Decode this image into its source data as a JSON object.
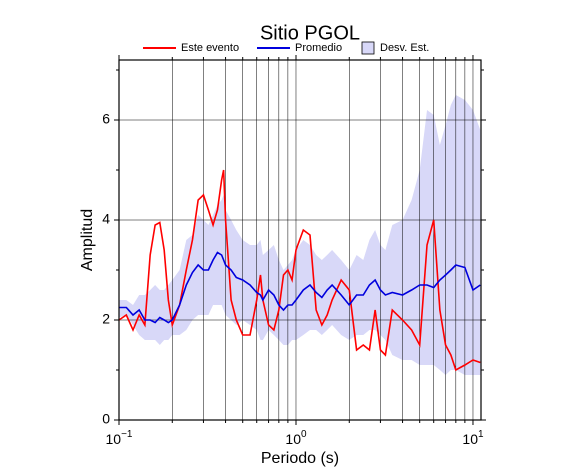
{
  "chart_data": {
    "type": "line",
    "title": "Sitio PGOL",
    "xlabel": "Periodo (s)",
    "ylabel": "Amplitud",
    "xscale": "log",
    "xlim": [
      0.1,
      11.1
    ],
    "ylim": [
      0,
      7.2
    ],
    "xticks": [
      {
        "value": 0.1,
        "label": "10",
        "exponent": "−1"
      },
      {
        "value": 1,
        "label": "10",
        "exponent": "0"
      },
      {
        "value": 10,
        "label": "10",
        "exponent": "1"
      }
    ],
    "xgrid_minor": [
      0.2,
      0.3,
      0.4,
      0.5,
      0.6,
      0.7,
      0.8,
      0.9,
      2,
      3,
      4,
      5,
      6,
      7,
      8,
      9
    ],
    "yticks": [
      0,
      2,
      4,
      6
    ],
    "yticks_minor": [
      1,
      3,
      5,
      7
    ],
    "grid": true,
    "legend": "top",
    "x": [
      0.1,
      0.11,
      0.12,
      0.13,
      0.14,
      0.15,
      0.16,
      0.17,
      0.18,
      0.19,
      0.2,
      0.22,
      0.24,
      0.26,
      0.28,
      0.3,
      0.32,
      0.34,
      0.36,
      0.38,
      0.39,
      0.4,
      0.43,
      0.46,
      0.5,
      0.55,
      0.6,
      0.63,
      0.65,
      0.7,
      0.75,
      0.8,
      0.85,
      0.9,
      0.95,
      1.0,
      1.1,
      1.2,
      1.3,
      1.4,
      1.5,
      1.6,
      1.8,
      2.0,
      2.2,
      2.4,
      2.6,
      2.8,
      3.0,
      3.2,
      3.5,
      4.0,
      4.5,
      5.0,
      5.5,
      6.0,
      6.5,
      7.0,
      7.5,
      8.0,
      9.0,
      10,
      11
    ],
    "series": [
      {
        "name": "Este evento",
        "color": "#ff0000",
        "values": [
          2.0,
          2.1,
          1.8,
          2.1,
          1.9,
          3.3,
          3.9,
          3.95,
          3.4,
          2.4,
          1.9,
          2.3,
          3.0,
          3.6,
          4.4,
          4.5,
          4.2,
          3.9,
          4.2,
          4.8,
          5.0,
          4.0,
          2.4,
          2.0,
          1.7,
          1.7,
          2.4,
          2.9,
          2.4,
          1.9,
          1.8,
          2.2,
          2.9,
          3.0,
          2.8,
          3.4,
          3.8,
          3.7,
          2.2,
          1.9,
          2.1,
          2.4,
          2.8,
          2.6,
          1.4,
          1.5,
          1.4,
          2.2,
          1.4,
          1.3,
          2.2,
          2.0,
          1.8,
          1.5,
          3.5,
          4.0,
          2.2,
          1.5,
          1.3,
          1.0,
          1.1,
          1.2,
          1.15
        ]
      },
      {
        "name": "Promedio",
        "color": "#0000dd",
        "values": [
          2.25,
          2.25,
          2.1,
          2.2,
          2.0,
          2.0,
          1.95,
          2.05,
          2.0,
          1.95,
          2.0,
          2.3,
          2.7,
          2.95,
          3.1,
          3.0,
          3.0,
          3.2,
          3.35,
          3.3,
          3.2,
          3.1,
          3.0,
          2.85,
          2.8,
          2.7,
          2.55,
          2.5,
          2.4,
          2.6,
          2.5,
          2.3,
          2.2,
          2.3,
          2.3,
          2.4,
          2.6,
          2.7,
          2.55,
          2.45,
          2.6,
          2.7,
          2.5,
          2.3,
          2.5,
          2.5,
          2.7,
          2.8,
          2.6,
          2.5,
          2.55,
          2.5,
          2.6,
          2.7,
          2.7,
          2.65,
          2.8,
          2.9,
          3.0,
          3.1,
          3.05,
          2.6,
          2.7
        ]
      },
      {
        "name": "Desv. Est.",
        "color": "#d8d8f8",
        "upper": [
          2.4,
          2.4,
          2.3,
          2.5,
          2.5,
          2.6,
          2.7,
          2.6,
          2.6,
          2.7,
          2.8,
          3.0,
          3.6,
          3.7,
          4.1,
          4.0,
          3.9,
          4.1,
          4.3,
          4.4,
          4.5,
          4.2,
          4.0,
          3.8,
          3.6,
          3.5,
          3.5,
          3.6,
          3.3,
          3.4,
          3.5,
          3.2,
          3.0,
          3.1,
          3.2,
          3.4,
          3.6,
          3.5,
          3.3,
          3.2,
          3.3,
          3.4,
          3.2,
          3.0,
          3.3,
          3.2,
          3.6,
          3.8,
          3.5,
          3.4,
          3.9,
          4.0,
          4.4,
          5.0,
          6.2,
          6.1,
          5.5,
          5.9,
          6.3,
          6.5,
          6.4,
          6.2,
          5.8
        ],
        "lower": [
          2.05,
          2.1,
          1.9,
          1.7,
          1.6,
          1.6,
          1.6,
          1.5,
          1.6,
          1.6,
          1.7,
          1.7,
          1.8,
          2.0,
          2.1,
          2.1,
          2.1,
          2.3,
          2.3,
          2.3,
          2.2,
          2.1,
          2.0,
          1.9,
          2.0,
          1.9,
          1.8,
          1.6,
          1.6,
          1.8,
          1.7,
          1.6,
          1.5,
          1.5,
          1.6,
          1.6,
          1.7,
          1.8,
          1.8,
          1.7,
          1.8,
          1.9,
          1.7,
          1.6,
          1.7,
          1.7,
          1.8,
          1.8,
          1.7,
          1.6,
          1.3,
          1.2,
          1.2,
          1.1,
          1.1,
          1.1,
          1.0,
          0.9,
          1.0,
          1.0,
          0.9,
          0.9,
          0.9
        ]
      }
    ]
  }
}
